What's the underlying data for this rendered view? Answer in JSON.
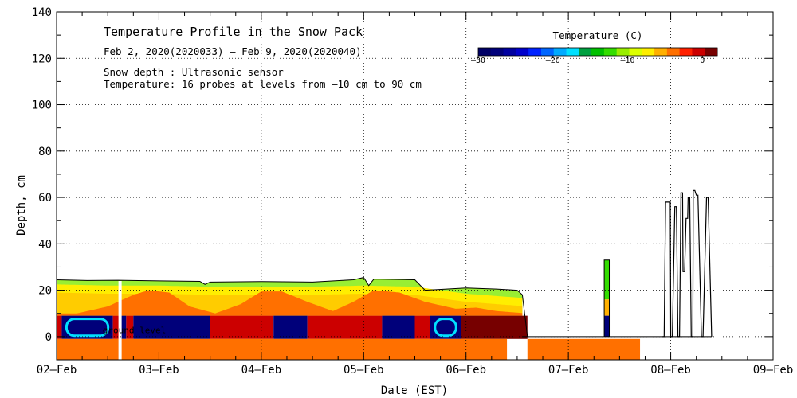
{
  "chart_data": {
    "type": "heatmap",
    "title": "Temperature Profile in the Snow Pack",
    "subtitle": "Feb  2, 2020(2020033) – Feb  9, 2020(2020040)",
    "notes": [
      "Snow depth : Ultrasonic sensor",
      "Temperature: 16 probes at levels from –10 cm to 90 cm"
    ],
    "ground_label": "ground level",
    "xlabel": "Date (EST)",
    "ylabel": "Depth, cm",
    "xlim": [
      0,
      7
    ],
    "ylim": [
      -10,
      140
    ],
    "x_tick_labels": [
      "02–Feb",
      "03–Feb",
      "04–Feb",
      "05–Feb",
      "06–Feb",
      "07–Feb",
      "08–Feb",
      "09–Feb"
    ],
    "y_ticks": [
      0,
      20,
      40,
      60,
      80,
      100,
      120,
      140
    ],
    "grid": "dotted",
    "colorbar": {
      "title": "Temperature (C)",
      "range": [
        -30,
        2
      ],
      "tick_values": [
        -30,
        -20,
        -10,
        0
      ],
      "tick_labels": [
        "–30",
        "–20",
        "–10",
        "0"
      ],
      "colors": [
        "#000066",
        "#00007a",
        "#0000a0",
        "#0000cc",
        "#0022ff",
        "#0066ff",
        "#00aaff",
        "#00e0ff",
        "#00a040",
        "#00c000",
        "#33dd00",
        "#99ee00",
        "#ddff00",
        "#ffee00",
        "#ffb000",
        "#ff7000",
        "#ff2000",
        "#cc0000",
        "#770000"
      ]
    },
    "snow_depth": {
      "x": [
        0,
        0.3,
        0.6,
        1.0,
        1.4,
        1.45,
        1.5,
        2.0,
        2.5,
        2.9,
        3.0,
        3.05,
        3.1,
        3.5,
        3.6,
        4.0,
        4.3,
        4.5,
        4.55,
        4.6
      ],
      "y": [
        24.5,
        24.2,
        24.3,
        24,
        23.8,
        22.5,
        23.5,
        23.7,
        23.5,
        24.5,
        25.5,
        22,
        24.8,
        24.5,
        20,
        21,
        20.5,
        20,
        18,
        0
      ]
    },
    "surface_band": {
      "x": [
        0,
        0.5,
        1.0,
        1.5,
        2.0,
        2.5,
        3.0,
        3.5,
        4.0,
        4.6
      ],
      "y": [
        24,
        23.5,
        23.5,
        23,
        23,
        23,
        23.5,
        23,
        20,
        18
      ]
    },
    "warm_layer_top": {
      "x": [
        0,
        0.2,
        0.5,
        0.75,
        0.9,
        1.1,
        1.3,
        1.55,
        1.8,
        2.0,
        2.2,
        2.45,
        2.7,
        2.9,
        3.1,
        3.35,
        3.6,
        3.9,
        4.1,
        4.3,
        4.6
      ],
      "y": [
        10,
        10,
        13,
        18,
        20,
        19,
        13,
        10,
        14,
        19.5,
        19.5,
        15,
        11,
        15,
        20,
        19,
        15,
        12,
        12.5,
        11,
        10
      ]
    },
    "probe_band": {
      "top": 9,
      "bottom": -1,
      "segments": [
        {
          "x0": 0,
          "x1": 0.05,
          "temp": -1
        },
        {
          "x0": 0.05,
          "x1": 0.55,
          "temp": -28,
          "edge": true
        },
        {
          "x0": 0.55,
          "x1": 0.62,
          "temp": -1
        },
        {
          "x0": 0.62,
          "x1": 0.68,
          "temp": -28
        },
        {
          "x0": 0.68,
          "x1": 0.75,
          "temp": -1
        },
        {
          "x0": 0.75,
          "x1": 1.5,
          "temp": -28
        },
        {
          "x0": 1.5,
          "x1": 2.12,
          "temp": -1
        },
        {
          "x0": 2.12,
          "x1": 2.45,
          "temp": -28
        },
        {
          "x0": 2.45,
          "x1": 3.18,
          "temp": -1
        },
        {
          "x0": 3.18,
          "x1": 3.5,
          "temp": -28
        },
        {
          "x0": 3.5,
          "x1": 3.65,
          "temp": -1
        },
        {
          "x0": 3.65,
          "x1": 3.95,
          "temp": -28,
          "edge": true
        },
        {
          "x0": 3.95,
          "x1": 4.6,
          "temp": 1.5
        }
      ]
    },
    "soil_band": {
      "top": -1,
      "bottom": -10,
      "segments": [
        {
          "x0": 0,
          "x1": 4.4
        },
        {
          "x0": 4.6,
          "x1": 5.7
        }
      ]
    },
    "gap_x": 0.62,
    "storm_spike": {
      "x": [
        5.35,
        5.4
      ],
      "top": 33
    },
    "depth_spikes": {
      "x": [
        5.92,
        5.95,
        5.98,
        6.0,
        6.04,
        6.07,
        6.1,
        6.12,
        6.15,
        6.17,
        6.2,
        6.22,
        6.25,
        6.3,
        6.35,
        6.4
      ],
      "y": [
        0,
        58,
        58,
        0,
        56,
        0,
        62,
        28,
        51,
        60,
        0,
        63,
        61,
        0,
        60,
        0
      ]
    }
  }
}
